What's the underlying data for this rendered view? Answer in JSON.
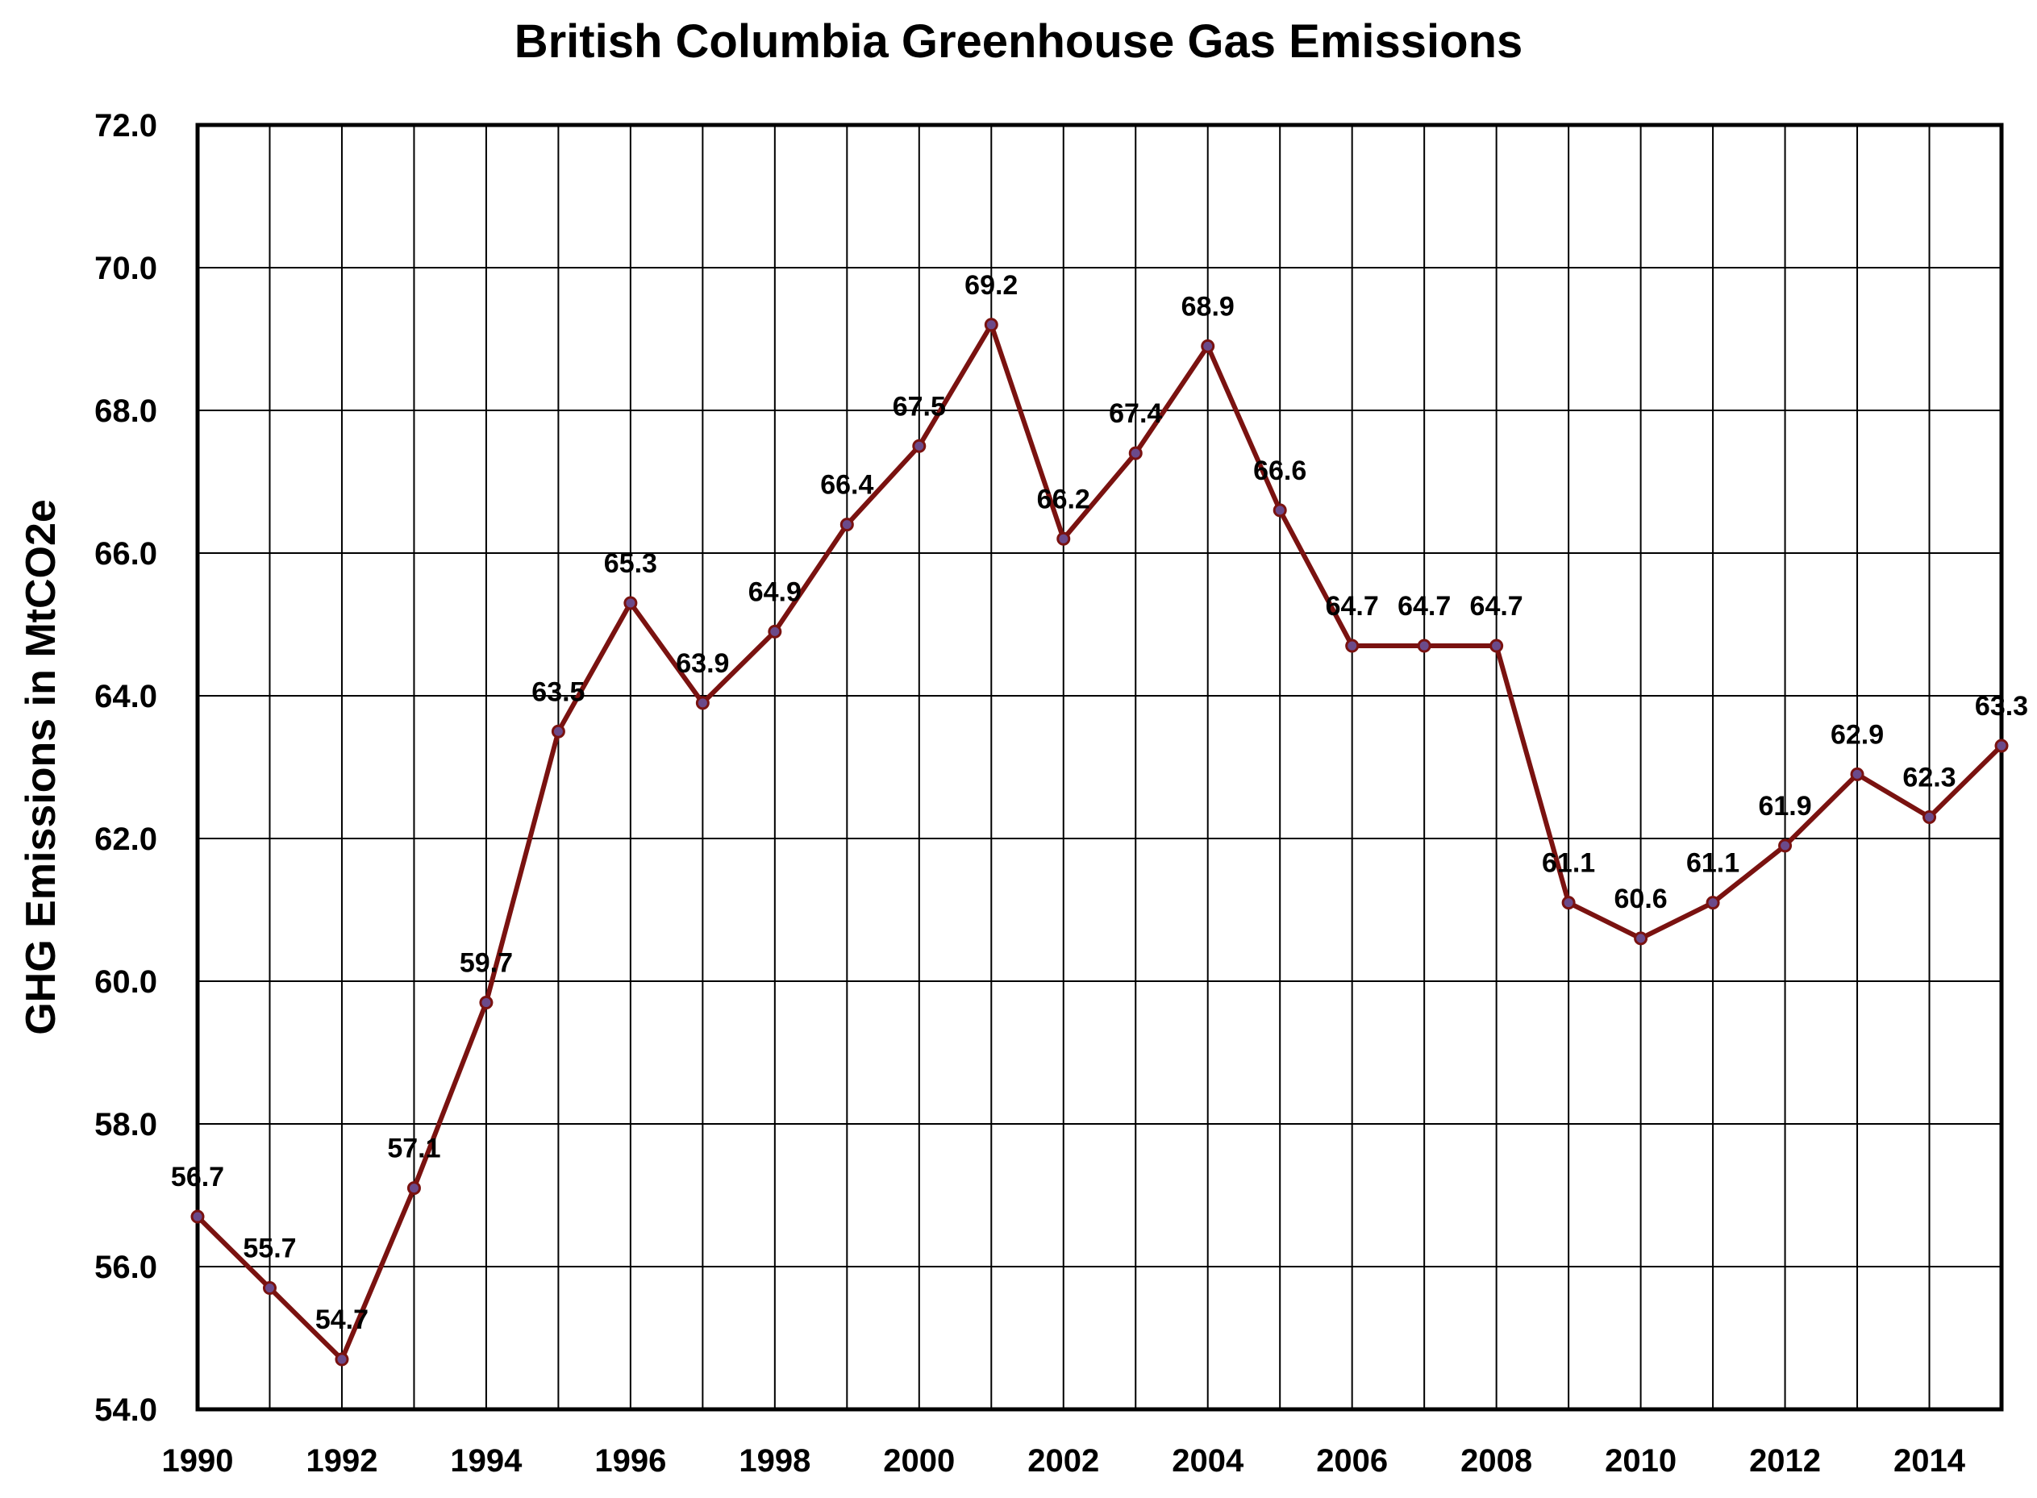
{
  "chart_data": {
    "type": "line",
    "title": "British Columbia Greenhouse Gas Emissions",
    "xlabel": "",
    "ylabel": "GHG Emissions in MtCO2e",
    "x": [
      1990,
      1991,
      1992,
      1993,
      1994,
      1995,
      1996,
      1997,
      1998,
      1999,
      2000,
      2001,
      2002,
      2003,
      2004,
      2005,
      2006,
      2007,
      2008,
      2009,
      2010,
      2011,
      2012,
      2013,
      2014,
      2015
    ],
    "series": [
      {
        "values": [
          56.7,
          55.7,
          54.7,
          57.1,
          59.7,
          63.5,
          65.3,
          63.9,
          64.9,
          66.4,
          67.5,
          69.2,
          66.2,
          67.4,
          68.9,
          66.6,
          64.7,
          64.7,
          64.7,
          61.1,
          60.6,
          61.1,
          61.9,
          62.9,
          62.3,
          63.3
        ],
        "color": "#7a1210",
        "marker_color": "#6b4a8a"
      }
    ],
    "data_labels": [
      "56.7",
      "55.7",
      "54.7",
      "57.1",
      "59.7",
      "63.5",
      "65.3",
      "63.9",
      "64.9",
      "66.4",
      "67.5",
      "69.2",
      "66.2",
      "67.4",
      "68.9",
      "66.6",
      "64.7",
      "64.7",
      "64.7",
      "61.1",
      "60.6",
      "61.1",
      "61.9",
      "62.9",
      "62.3",
      "63.3"
    ],
    "xlim": [
      1990,
      2015
    ],
    "ylim": [
      54.0,
      72.0
    ],
    "y_ticks": [
      "54.0",
      "56.0",
      "58.0",
      "60.0",
      "62.0",
      "64.0",
      "66.0",
      "68.0",
      "70.0",
      "72.0"
    ],
    "x_ticks": [
      "1990",
      "1992",
      "1994",
      "1996",
      "1998",
      "2000",
      "2002",
      "2004",
      "2006",
      "2008",
      "2010",
      "2012",
      "2014"
    ],
    "grid": true,
    "legend": "none"
  }
}
